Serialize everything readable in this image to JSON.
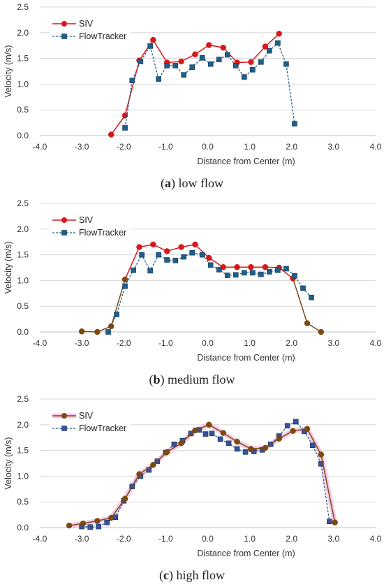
{
  "colors": {
    "siv_red": "#d7191c",
    "siv_brown": "#7b4a12",
    "flowtracker": "#1f5f8b",
    "flowtracker_marker_c": "#3b4fa0",
    "highlight_pink": "#f2b8de",
    "grid": "#d9d9d9",
    "axis": "#bfbfbf"
  },
  "chart_data": [
    {
      "type": "line",
      "caption_letter": "a",
      "caption_text": " low flow",
      "xlabel": "Distance from Center (m)",
      "ylabel": "Velocity (m/s)",
      "xlim": [
        -4.0,
        4.0
      ],
      "ylim": [
        0.0,
        2.5
      ],
      "x_ticks": [
        "-4.0",
        "-3.0",
        "-2.0",
        "-1.0",
        "0.0",
        "1.0",
        "2.0",
        "3.0",
        "4.0"
      ],
      "y_ticks": [
        "0.0",
        "0.5",
        "1.0",
        "1.5",
        "2.0",
        "2.5"
      ],
      "grid": "horizontal",
      "legend_position": "top-left",
      "series": [
        {
          "name": "SIV",
          "style": "solid",
          "marker": "circle",
          "color": "#d7191c",
          "x": [
            -2.3,
            -1.97,
            -1.63,
            -1.3,
            -0.97,
            -0.63,
            -0.3,
            0.03,
            0.37,
            0.7,
            1.03,
            1.37,
            1.7
          ],
          "y": [
            0.02,
            0.39,
            1.46,
            1.86,
            1.42,
            1.44,
            1.58,
            1.76,
            1.71,
            1.42,
            1.43,
            1.73,
            1.98
          ]
        },
        {
          "name": "FlowTracker",
          "style": "dashed",
          "marker": "square",
          "color": "#1f5f8b",
          "x": [
            -1.97,
            -1.8,
            -1.6,
            -1.37,
            -1.17,
            -0.97,
            -0.77,
            -0.57,
            -0.37,
            -0.13,
            0.07,
            0.27,
            0.47,
            0.67,
            0.87,
            1.07,
            1.27,
            1.47,
            1.67,
            1.87,
            2.07
          ],
          "y": [
            0.15,
            1.07,
            1.44,
            1.74,
            1.1,
            1.36,
            1.36,
            1.18,
            1.33,
            1.51,
            1.39,
            1.48,
            1.57,
            1.36,
            1.14,
            1.28,
            1.43,
            1.65,
            1.8,
            1.39,
            0.23
          ]
        }
      ]
    },
    {
      "type": "line",
      "caption_letter": "b",
      "caption_text": " medium flow",
      "xlabel": "Distance from Center (m)",
      "ylabel": "Velocity (m/s)",
      "xlim": [
        -4.0,
        4.0
      ],
      "ylim": [
        0.0,
        2.5
      ],
      "x_ticks": [
        "-4.0",
        "-3.0",
        "-2.0",
        "-1.0",
        "0.0",
        "1.0",
        "2.0",
        "3.0",
        "4.0"
      ],
      "y_ticks": [
        "0.0",
        "0.5",
        "1.0",
        "1.5",
        "2.0",
        "2.5"
      ],
      "grid": "horizontal",
      "legend_position": "top-left",
      "series": [
        {
          "name": "SIV",
          "style": "solid",
          "marker": "circle",
          "color": "#d7191c",
          "x": [
            -3.0,
            -2.63,
            -2.3,
            -1.97,
            -1.63,
            -1.3,
            -0.97,
            -0.63,
            -0.3,
            0.03,
            0.37,
            0.7,
            1.03,
            1.37,
            1.7,
            2.03,
            2.37,
            2.7
          ],
          "y": [
            0.01,
            0.0,
            0.11,
            1.02,
            1.65,
            1.7,
            1.57,
            1.65,
            1.7,
            1.44,
            1.26,
            1.26,
            1.26,
            1.26,
            1.25,
            1.04,
            0.17,
            0.0
          ],
          "color_segments": {
            "front_end": "#7b4a12",
            "back_start": "#7b4a12"
          }
        },
        {
          "name": "FlowTracker",
          "style": "dashed",
          "marker": "square",
          "color": "#1f5f8b",
          "x": [
            -2.37,
            -2.17,
            -1.97,
            -1.77,
            -1.57,
            -1.37,
            -1.17,
            -0.97,
            -0.77,
            -0.57,
            -0.37,
            -0.13,
            0.07,
            0.27,
            0.47,
            0.67,
            0.87,
            1.07,
            1.27,
            1.47,
            1.67,
            1.87,
            2.07,
            2.27,
            2.47
          ],
          "y": [
            0.0,
            0.34,
            0.89,
            1.2,
            1.5,
            1.19,
            1.5,
            1.4,
            1.39,
            1.46,
            1.54,
            1.5,
            1.3,
            1.21,
            1.1,
            1.11,
            1.15,
            1.15,
            1.12,
            1.17,
            1.2,
            1.23,
            1.09,
            0.85,
            0.67
          ]
        }
      ]
    },
    {
      "type": "line",
      "caption_letter": "c",
      "caption_text": " high flow",
      "xlabel": "Distance from Center (m)",
      "ylabel": "Velocity (m/s)",
      "xlim": [
        -4.0,
        4.0
      ],
      "ylim": [
        0.0,
        2.5
      ],
      "x_ticks": [
        "-4.0",
        "-3.0",
        "-2.0",
        "-1.0",
        "0.0",
        "1.0",
        "2.0",
        "3.0",
        "4.0"
      ],
      "y_ticks": [
        "0.0",
        "0.5",
        "1.0",
        "1.5",
        "2.0",
        "2.5"
      ],
      "grid": "horizontal",
      "legend_position": "top-left",
      "series": [
        {
          "name": "SIV",
          "style": "solid",
          "marker": "circle",
          "color": "#7b4a12",
          "x": [
            -3.3,
            -2.97,
            -2.63,
            -2.3,
            -1.97,
            -1.63,
            -1.3,
            -0.97,
            -0.63,
            -0.3,
            0.03,
            0.37,
            0.7,
            1.03,
            1.37,
            1.7,
            2.03,
            2.37,
            2.7,
            3.03
          ],
          "y": [
            0.04,
            0.08,
            0.13,
            0.19,
            0.56,
            1.04,
            1.22,
            1.47,
            1.64,
            1.89,
            2.0,
            1.84,
            1.67,
            1.53,
            1.55,
            1.73,
            1.88,
            1.92,
            1.42,
            0.1
          ]
        },
        {
          "name": "FlowTracker",
          "style": "dashed",
          "marker": "square",
          "color": "#1f5f8b",
          "x": [
            -3.0,
            -2.8,
            -2.6,
            -2.4,
            -2.2,
            -2.0,
            -1.8,
            -1.6,
            -1.4,
            -1.2,
            -1.0,
            -0.8,
            -0.6,
            -0.4,
            -0.2,
            -0.05,
            0.1,
            0.3,
            0.5,
            0.7,
            0.9,
            1.1,
            1.3,
            1.5,
            1.7,
            1.9,
            2.1,
            2.3,
            2.5,
            2.7,
            2.9
          ],
          "y": [
            0.02,
            0.01,
            0.02,
            0.1,
            0.2,
            0.52,
            0.8,
            1.0,
            1.12,
            1.29,
            1.46,
            1.62,
            1.69,
            1.83,
            1.9,
            1.82,
            1.83,
            1.72,
            1.64,
            1.53,
            1.47,
            1.48,
            1.51,
            1.62,
            1.78,
            1.98,
            2.06,
            1.87,
            1.6,
            1.24,
            0.12
          ]
        }
      ]
    }
  ]
}
